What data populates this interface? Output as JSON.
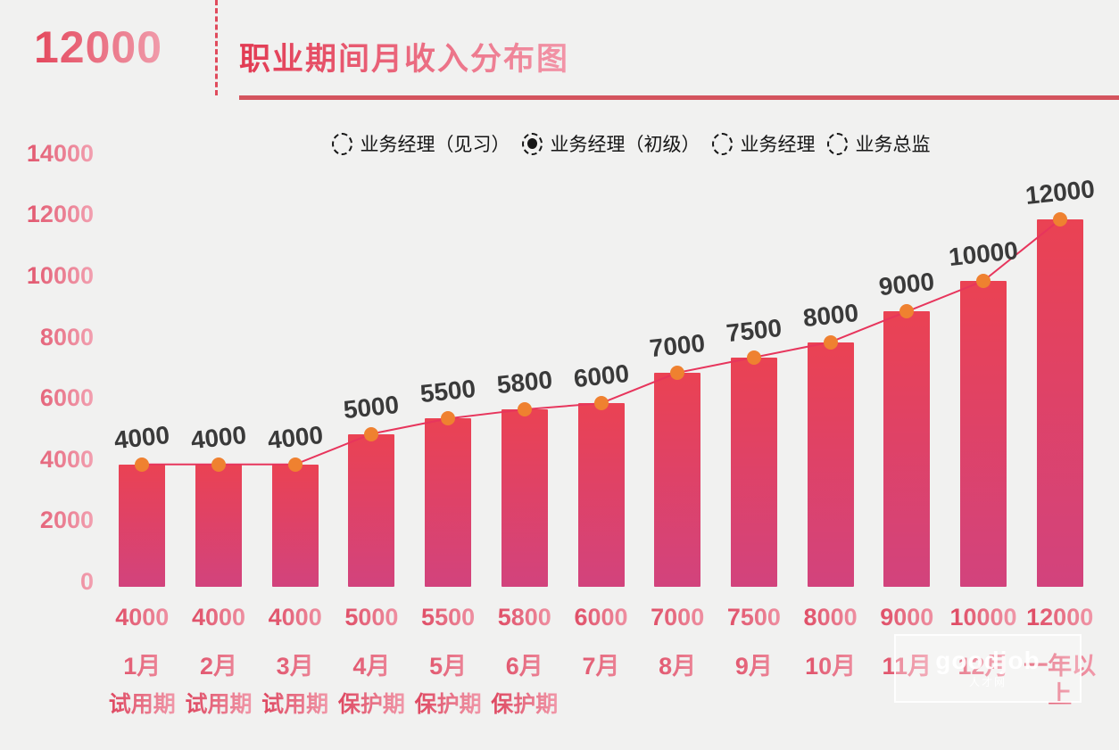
{
  "header": {
    "big_number": "12000",
    "title": "职业期间月收入分布图"
  },
  "legend": {
    "items": [
      {
        "label": "业务经理（见习）",
        "selected": false
      },
      {
        "label": "业务经理（初级）",
        "selected": true
      },
      {
        "label": "业务经理",
        "selected": false
      },
      {
        "label": "业务总监",
        "selected": false
      }
    ]
  },
  "chart_data": {
    "type": "bar",
    "title": "职业期间月收入分布图",
    "selected_series": "业务经理（初级）",
    "categories": [
      "1月",
      "2月",
      "3月",
      "4月",
      "5月",
      "6月",
      "7月",
      "8月",
      "9月",
      "10月",
      "11月",
      "12月",
      "一年以上"
    ],
    "period_labels": [
      "试用期",
      "试用期",
      "试用期",
      "保护期",
      "保护期",
      "保护期",
      "",
      "",
      "",
      "",
      "",
      "",
      ""
    ],
    "values": [
      4000,
      4000,
      4000,
      5000,
      5500,
      5800,
      6000,
      7000,
      7500,
      8000,
      9000,
      10000,
      12000
    ],
    "y_ticks": [
      14000,
      12000,
      10000,
      8000,
      6000,
      4000,
      2000,
      0
    ],
    "ylim": [
      0,
      14000
    ],
    "grid": false,
    "legend_position": "top",
    "overlay": "line-with-dots"
  },
  "colors": {
    "background": "#f1f1f0",
    "bar_top": "#ea4253",
    "bar_bottom": "#d2437d",
    "line": "#e7355c",
    "dot": "#ef8130",
    "underline": "#d4545e",
    "data_label": "#3a3a3a",
    "pink_label_dark": "#dc3e58",
    "pink_label_light": "#f2a0b0"
  },
  "watermark": {
    "logo_text": "goodjob",
    "sub_text": "人才网"
  }
}
